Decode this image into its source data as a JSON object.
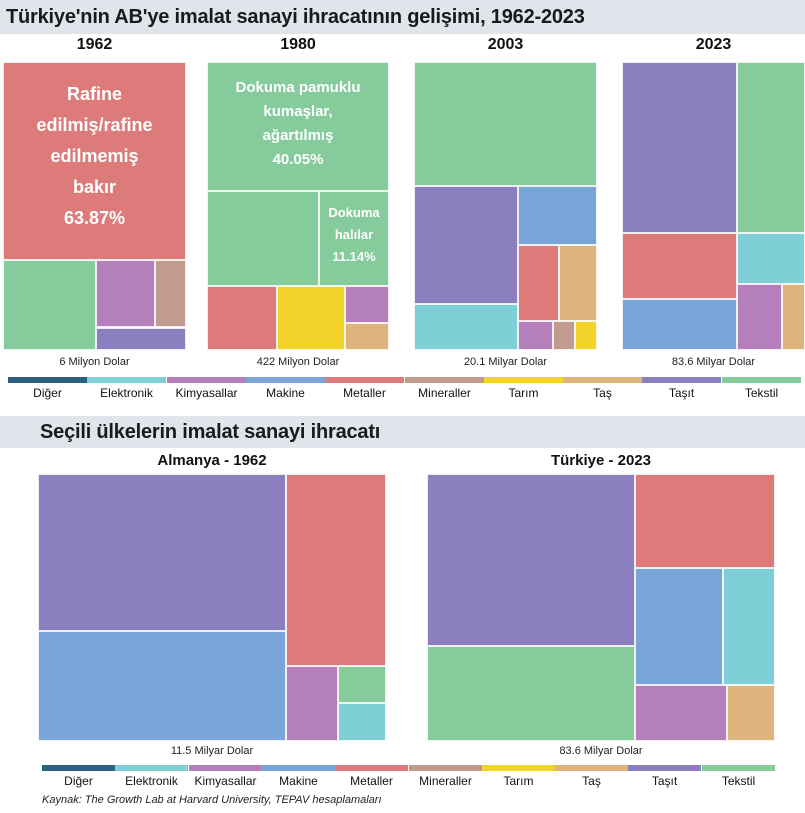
{
  "colors": {
    "Diğer": "#2c6080",
    "Elektronik": "#7fcfd6",
    "Kimyasallar": "#b47fbb",
    "Makine": "#7aa5d8",
    "Metaller": "#dd7b7b",
    "Mineraller": "#c19c8e",
    "Tarım": "#f3d229",
    "Taş": "#ddb57c",
    "Taşıt": "#8c7fbf",
    "Tekstil": "#86cb9b"
  },
  "section1": {
    "title": "Türkiye'nin AB'ye imalat sanayi ihracatının gelişimi, 1962-2023"
  },
  "section2": {
    "title": "Seçili ülkelerin imalat sanayi ihracatı"
  },
  "legend_items": [
    "Diğer",
    "Elektronik",
    "Kimyasallar",
    "Makine",
    "Metaller",
    "Mineraller",
    "Tarım",
    "Taş",
    "Taşıt",
    "Tekstil"
  ],
  "source": "Kaynak: The Growth Lab at Harvard University, TEPAV hesaplamaları",
  "chart_data": [
    {
      "type": "treemap",
      "title": "1962",
      "total_label": "6 Milyon Dolar",
      "cells": [
        {
          "category": "Metaller",
          "share": 63.87,
          "label": [
            "Rafine",
            "edilmiş/rafine",
            "edilmemiş",
            "bakır",
            "63.87%"
          ]
        },
        {
          "category": "Tekstil",
          "share": 18.0
        },
        {
          "category": "Kimyasallar",
          "share": 10.0
        },
        {
          "category": "Mineraller",
          "share": 4.0
        },
        {
          "category": "Taşıt",
          "share": 4.0
        }
      ]
    },
    {
      "type": "treemap",
      "title": "1980",
      "total_label": "422 Milyon Dolar",
      "cells": [
        {
          "category": "Tekstil",
          "share": 40.05,
          "label": [
            "Dokuma pamuklu",
            "kumaşlar,",
            "ağartılmış",
            "40.05%"
          ]
        },
        {
          "category": "Tekstil",
          "share": 21.0
        },
        {
          "category": "Tekstil",
          "share": 11.14,
          "label": [
            "Dokuma",
            "halılar",
            "11.14%"
          ]
        },
        {
          "category": "Metaller",
          "share": 12.0
        },
        {
          "category": "Tarım",
          "share": 11.0
        },
        {
          "category": "Kimyasallar",
          "share": 3.0
        },
        {
          "category": "Taş",
          "share": 2.0
        }
      ]
    },
    {
      "type": "treemap",
      "title": "2003",
      "total_label": "20.1 Milyar Dolar",
      "cells": [
        {
          "category": "Tekstil",
          "share": 42.0
        },
        {
          "category": "Taşıt",
          "share": 24.0
        },
        {
          "category": "Elektronik",
          "share": 10.0
        },
        {
          "category": "Makine",
          "share": 8.0
        },
        {
          "category": "Metaller",
          "share": 7.0
        },
        {
          "category": "Taş",
          "share": 4.0
        },
        {
          "category": "Kimyasallar",
          "share": 2.0
        },
        {
          "category": "Mineraller",
          "share": 1.5
        },
        {
          "category": "Tarım",
          "share": 1.5
        }
      ]
    },
    {
      "type": "treemap",
      "title": "2023",
      "total_label": "83.6 Milyar Dolar",
      "cells": [
        {
          "category": "Taşıt",
          "share": 32.0
        },
        {
          "category": "Tekstil",
          "share": 20.0
        },
        {
          "category": "Metaller",
          "share": 14.0
        },
        {
          "category": "Elektronik",
          "share": 7.0
        },
        {
          "category": "Makine",
          "share": 11.0
        },
        {
          "category": "Kimyasallar",
          "share": 9.0
        },
        {
          "category": "Taş",
          "share": 5.0
        }
      ]
    },
    {
      "type": "treemap",
      "title": "Almanya - 1962",
      "total_label": "11.5 Milyar Dolar",
      "cells": [
        {
          "category": "Taşıt",
          "share": 35.0
        },
        {
          "category": "Makine",
          "share": 37.0
        },
        {
          "category": "Metaller",
          "share": 16.0
        },
        {
          "category": "Kimyasallar",
          "share": 6.0
        },
        {
          "category": "Tekstil",
          "share": 3.0
        },
        {
          "category": "Elektronik",
          "share": 3.0
        }
      ]
    },
    {
      "type": "treemap",
      "title": "Türkiye - 2023",
      "total_label": "83.6 Milyar Dolar",
      "cells": [
        {
          "category": "Taşıt",
          "share": 35.0
        },
        {
          "category": "Tekstil",
          "share": 22.0
        },
        {
          "category": "Metaller",
          "share": 12.0
        },
        {
          "category": "Makine",
          "share": 10.0
        },
        {
          "category": "Elektronik",
          "share": 8.0
        },
        {
          "category": "Kimyasallar",
          "share": 8.0
        },
        {
          "category": "Taş",
          "share": 5.0
        }
      ]
    }
  ]
}
